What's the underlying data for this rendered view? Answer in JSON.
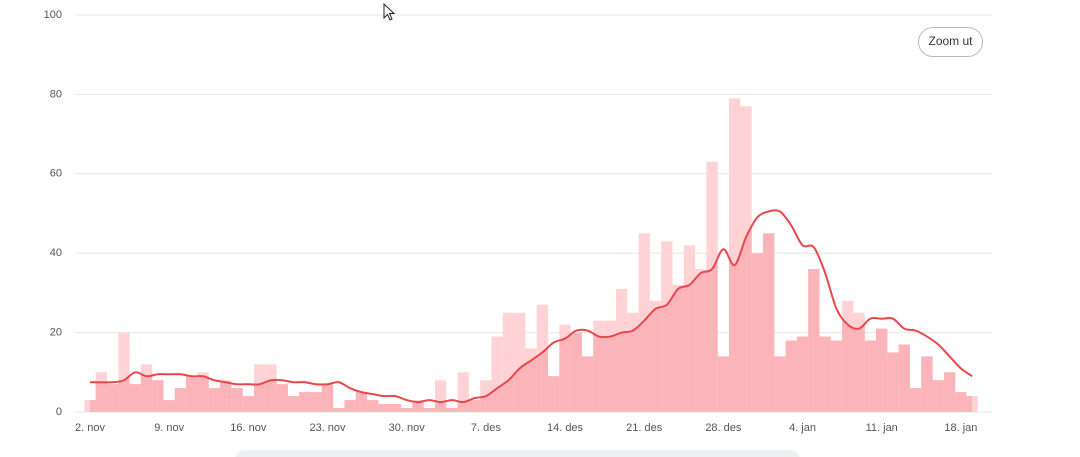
{
  "chart_data": {
    "type": "bar",
    "categories": [
      "2. nov",
      null,
      null,
      null,
      null,
      null,
      null,
      "9. nov",
      null,
      null,
      null,
      null,
      null,
      null,
      "16. nov",
      null,
      null,
      null,
      null,
      null,
      null,
      "23. nov",
      null,
      null,
      null,
      null,
      null,
      null,
      "30. nov",
      null,
      null,
      null,
      null,
      null,
      null,
      "7. des",
      null,
      null,
      null,
      null,
      null,
      null,
      "14. des",
      null,
      null,
      null,
      null,
      null,
      null,
      "21. des",
      null,
      null,
      null,
      null,
      null,
      null,
      "28. des",
      null,
      null,
      null,
      null,
      null,
      null,
      "4. jan",
      null,
      null,
      null,
      null,
      null,
      null,
      "11. jan",
      null,
      null,
      null,
      null,
      null,
      null,
      "18. jan",
      null
    ],
    "series": [
      {
        "type": "bar",
        "color": "#ffd3d6",
        "values": [
          3,
          10,
          7,
          20,
          7,
          12,
          8,
          3,
          6,
          9,
          10,
          6,
          8,
          6,
          4,
          12,
          12,
          7,
          4,
          5,
          5,
          7,
          1,
          3,
          5,
          3,
          2,
          2,
          1,
          3,
          1,
          8,
          1,
          10,
          3,
          8,
          19,
          25,
          25,
          16,
          27,
          9,
          22,
          20,
          14,
          23,
          23,
          31,
          25,
          45,
          28,
          43,
          32,
          42,
          36,
          63,
          14,
          79,
          77,
          40,
          45,
          14,
          18,
          19,
          36,
          19,
          18,
          28,
          25,
          18,
          21,
          15,
          17,
          6,
          14,
          8,
          10,
          5,
          4
        ]
      },
      {
        "type": "line",
        "color": "#e8474c",
        "values": [
          7.5,
          7.5,
          7.5,
          8,
          10,
          9,
          9.5,
          9.5,
          9.5,
          9,
          9,
          8,
          7.5,
          7,
          7,
          7,
          8,
          8,
          7.5,
          7.5,
          7,
          7,
          7.5,
          6,
          5,
          4.5,
          4,
          4,
          3,
          2.5,
          3,
          2.5,
          3,
          2.5,
          3.5,
          4,
          6,
          8,
          11,
          13,
          15,
          17.5,
          18.5,
          20.5,
          20.5,
          19,
          19,
          20,
          20.5,
          23,
          26,
          27,
          31,
          32,
          35,
          36,
          41,
          37,
          44,
          49,
          50.5,
          50.5,
          47,
          42,
          41.5,
          35,
          26,
          22,
          21,
          23.5,
          23.5,
          23.5,
          21,
          20.5,
          19,
          17,
          14,
          11,
          9
        ]
      }
    ],
    "area_color": "#fbb4b9",
    "ylim": [
      0,
      100
    ],
    "yticks": [
      0,
      20,
      40,
      60,
      80,
      100
    ],
    "grid": true
  },
  "controls": {
    "zoom": "Zoom ut"
  }
}
